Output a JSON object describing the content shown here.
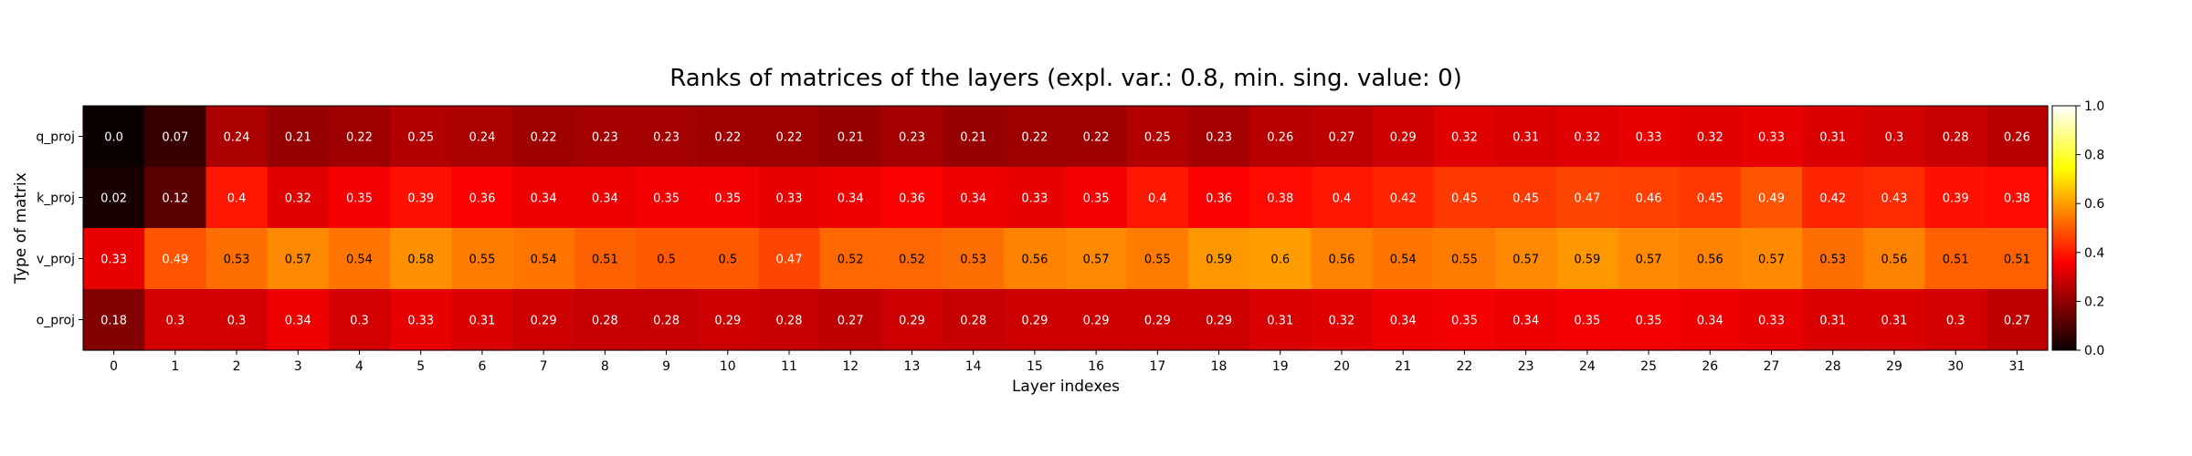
{
  "chart_data": {
    "type": "heatmap",
    "title": "Ranks of matrices of the layers (expl. var.: 0.8, min. sing. value: 0)",
    "xlabel": "Layer indexes",
    "ylabel": "Type of matrix",
    "rows": [
      "q_proj",
      "k_proj",
      "v_proj",
      "o_proj"
    ],
    "columns": [
      "0",
      "1",
      "2",
      "3",
      "4",
      "5",
      "6",
      "7",
      "8",
      "9",
      "10",
      "11",
      "12",
      "13",
      "14",
      "15",
      "16",
      "17",
      "18",
      "19",
      "20",
      "21",
      "22",
      "23",
      "24",
      "25",
      "26",
      "27",
      "28",
      "29",
      "30",
      "31"
    ],
    "values": [
      [
        "0.0",
        "0.07",
        "0.24",
        "0.21",
        "0.22",
        "0.25",
        "0.24",
        "0.22",
        "0.23",
        "0.23",
        "0.22",
        "0.22",
        "0.21",
        "0.23",
        "0.21",
        "0.22",
        "0.22",
        "0.25",
        "0.23",
        "0.26",
        "0.27",
        "0.29",
        "0.32",
        "0.31",
        "0.32",
        "0.33",
        "0.32",
        "0.33",
        "0.31",
        "0.3",
        "0.28",
        "0.26"
      ],
      [
        "0.02",
        "0.12",
        "0.4",
        "0.32",
        "0.35",
        "0.39",
        "0.36",
        "0.34",
        "0.34",
        "0.35",
        "0.35",
        "0.33",
        "0.34",
        "0.36",
        "0.34",
        "0.33",
        "0.35",
        "0.4",
        "0.36",
        "0.38",
        "0.4",
        "0.42",
        "0.45",
        "0.45",
        "0.47",
        "0.46",
        "0.45",
        "0.49",
        "0.42",
        "0.43",
        "0.39",
        "0.38"
      ],
      [
        "0.33",
        "0.49",
        "0.53",
        "0.57",
        "0.54",
        "0.58",
        "0.55",
        "0.54",
        "0.51",
        "0.5",
        "0.5",
        "0.47",
        "0.52",
        "0.52",
        "0.53",
        "0.56",
        "0.57",
        "0.55",
        "0.59",
        "0.6",
        "0.56",
        "0.54",
        "0.55",
        "0.57",
        "0.59",
        "0.57",
        "0.56",
        "0.57",
        "0.53",
        "0.56",
        "0.51",
        "0.51"
      ],
      [
        "0.18",
        "0.3",
        "0.3",
        "0.34",
        "0.3",
        "0.33",
        "0.31",
        "0.29",
        "0.28",
        "0.28",
        "0.29",
        "0.28",
        "0.27",
        "0.29",
        "0.28",
        "0.29",
        "0.29",
        "0.29",
        "0.29",
        "0.31",
        "0.32",
        "0.34",
        "0.35",
        "0.34",
        "0.35",
        "0.35",
        "0.34",
        "0.33",
        "0.31",
        "0.31",
        "0.3",
        "0.27"
      ]
    ],
    "colormap": "hot",
    "vmin": 0.0,
    "vmax": 1.0,
    "colorbar_ticks": [
      "0.0",
      "0.2",
      "0.4",
      "0.6",
      "0.8",
      "1.0"
    ],
    "grid": false
  }
}
